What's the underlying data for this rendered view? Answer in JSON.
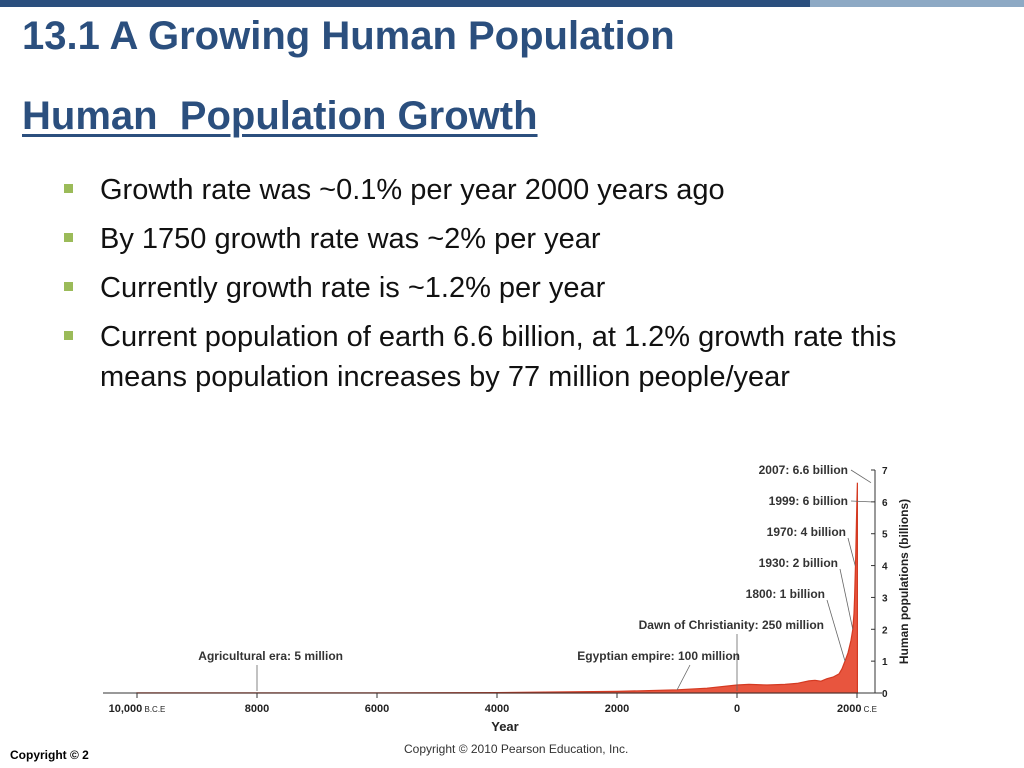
{
  "slide": {
    "title": "13.1 A Growing Human Population",
    "subtitle": "Human  Population Growth",
    "bullets": [
      "Growth rate was ~0.1% per year 2000 years ago",
      "By 1750 growth rate was ~2% per year",
      "Currently growth rate is ~1.2% per year",
      "Current population of earth 6.6 billion, at 1.2% growth rate this means population increases by 77 million people/year"
    ],
    "footer_left": "Copyright © 2",
    "footer_center": "Copyright © 2010 Pearson Education, Inc."
  },
  "colors": {
    "title": "#2b4f7e",
    "bar_dark": "#2b4f7e",
    "bar_light": "#8da9c4",
    "bullet_marker": "#9bbb59",
    "curve_fill": "#e8553e",
    "curve_stroke": "#d43a22"
  },
  "chart_data": {
    "type": "area",
    "xlabel": "Year",
    "ylabel": "Human populations (billions)",
    "xlim": [
      -10000,
      2050
    ],
    "ylim": [
      0,
      7
    ],
    "x_ticks": [
      {
        "value": -10000,
        "label": "10,000",
        "suffix": "B.C.E"
      },
      {
        "value": -8000,
        "label": "8000"
      },
      {
        "value": -6000,
        "label": "6000"
      },
      {
        "value": -4000,
        "label": "4000"
      },
      {
        "value": -2000,
        "label": "2000"
      },
      {
        "value": 0,
        "label": "0"
      },
      {
        "value": 2000,
        "label": "2000",
        "suffix": "C.E"
      }
    ],
    "y_ticks": [
      0,
      1,
      2,
      3,
      4,
      5,
      6,
      7
    ],
    "series": [
      {
        "x": [
          -10000,
          -8000,
          -6000,
          -4000,
          -3000,
          -2000,
          -1000,
          -500,
          0,
          200,
          500,
          800,
          1000,
          1200,
          1300,
          1400,
          1500,
          1600,
          1700,
          1750,
          1800,
          1850,
          1900,
          1930,
          1950,
          1960,
          1970,
          1980,
          1990,
          1999,
          2007
        ],
        "y": [
          0.004,
          0.005,
          0.007,
          0.014,
          0.03,
          0.05,
          0.1,
          0.15,
          0.25,
          0.27,
          0.25,
          0.27,
          0.3,
          0.38,
          0.4,
          0.37,
          0.45,
          0.5,
          0.6,
          0.76,
          1.0,
          1.26,
          1.65,
          2.0,
          2.5,
          3.0,
          3.7,
          4.4,
          5.3,
          6.0,
          6.6
        ]
      }
    ],
    "annotations": [
      {
        "text": "2007: 6.6 billion",
        "x": 2007,
        "y": 6.6
      },
      {
        "text": "1999: 6 billion",
        "x": 1999,
        "y": 6.0
      },
      {
        "text": "1970: 4 billion",
        "x": 1970,
        "y": 4.0
      },
      {
        "text": "1930: 2 billion",
        "x": 1930,
        "y": 2.0
      },
      {
        "text": "1800: 1 billion",
        "x": 1800,
        "y": 1.0
      },
      {
        "text": "Dawn of Christianity: 250 million",
        "x": 0,
        "y": 0.25
      },
      {
        "text": "Egyptian empire: 100 million",
        "x": -1000,
        "y": 0.1
      },
      {
        "text": "Agricultural era: 5 million",
        "x": -8000,
        "y": 0.005
      }
    ]
  }
}
